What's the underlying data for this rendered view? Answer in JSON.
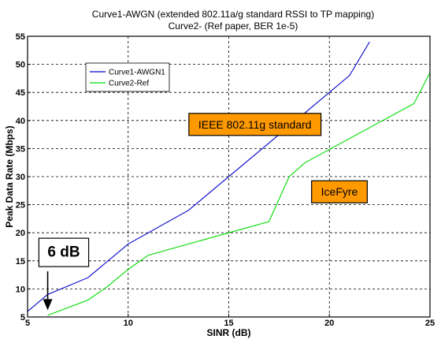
{
  "chart_data": {
    "type": "line",
    "title": "Curve1-AWGN (extended 802.11a/g standard RSSI to TP mapping)",
    "subtitle": "Curve2- (Ref paper, BER 1e-5)",
    "xlabel": "SINR (dB)",
    "ylabel": "Peak Data Rate (Mbps)",
    "xlim": [
      5,
      25
    ],
    "ylim": [
      5,
      55
    ],
    "xticks": [
      5,
      10,
      15,
      20,
      25
    ],
    "yticks": [
      5,
      10,
      15,
      20,
      25,
      30,
      35,
      40,
      45,
      50,
      55
    ],
    "grid": true,
    "legend_position": "top-left",
    "series": [
      {
        "name": "Curve1-AWGN1",
        "color": "#0000cc",
        "x": [
          5,
          6,
          8,
          10,
          13,
          17,
          19,
          21,
          22
        ],
        "y": [
          6,
          9,
          12,
          18,
          24,
          36,
          42,
          48,
          54
        ]
      },
      {
        "name": "Curve2-Ref",
        "color": "#00dd00",
        "x": [
          6,
          8,
          9,
          10,
          11,
          14,
          17,
          18,
          18.8,
          24.2,
          25
        ],
        "y": [
          5.3,
          8,
          10.5,
          13.5,
          16,
          19,
          22,
          30,
          32.5,
          43,
          48.5
        ]
      }
    ],
    "annotations": [
      {
        "text": "IEEE 802.11g standard",
        "x": 16.3,
        "y": 39.3,
        "fill": "#ff9900"
      },
      {
        "text": "IceFyre",
        "x": 20.5,
        "y": 27.3,
        "fill": "#ff9900"
      },
      {
        "text": "6 dB",
        "x": 6.8,
        "y": 16.5,
        "fill": "#ffffff",
        "arrow_to": [
          6,
          6.5
        ]
      }
    ]
  }
}
